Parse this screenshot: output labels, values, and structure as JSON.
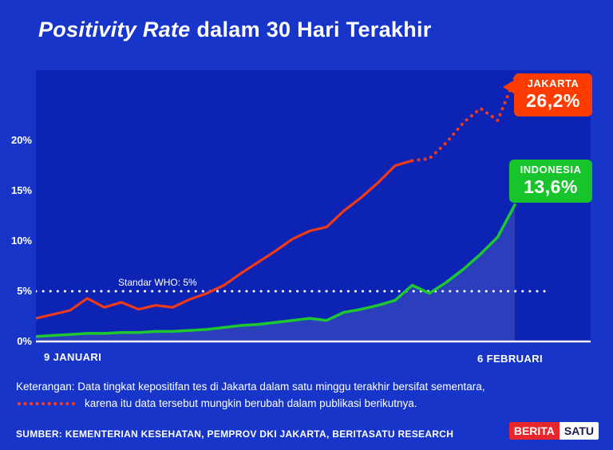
{
  "title": {
    "italic": "Positivity Rate",
    "rest": " dalam 30 Hari Terakhir"
  },
  "chart_data": {
    "type": "line",
    "x_start_label": "9 JANUARI",
    "x_end_label": "6 FEBRUARI",
    "ylim": [
      0,
      27
    ],
    "yticks": [
      "0%",
      "5%",
      "10%",
      "15%",
      "20%"
    ],
    "ytick_values": [
      0,
      5,
      10,
      15,
      20
    ],
    "grid": "off",
    "who_line": {
      "value": 5,
      "label": "Standar WHO: 5%"
    },
    "series": [
      {
        "name": "JAKARTA",
        "final_label": "26,2%",
        "color": "#f23a15",
        "dotted_from_index": 22,
        "values": [
          2.3,
          2.7,
          3.1,
          4.3,
          3.4,
          3.9,
          3.2,
          3.6,
          3.4,
          4.2,
          4.8,
          5.6,
          6.8,
          7.9,
          9.0,
          10.2,
          11.0,
          11.4,
          13.0,
          14.3,
          15.8,
          17.5,
          18.0,
          18.2,
          19.8,
          21.8,
          23.2,
          22.0,
          26.2
        ]
      },
      {
        "name": "INDONESIA",
        "final_label": "13,6%",
        "color": "#1dc72f",
        "values": [
          0.5,
          0.6,
          0.7,
          0.8,
          0.8,
          0.9,
          0.9,
          1.0,
          1.0,
          1.1,
          1.2,
          1.4,
          1.6,
          1.7,
          1.9,
          2.1,
          2.3,
          2.1,
          2.9,
          3.2,
          3.6,
          4.1,
          5.6,
          4.8,
          5.9,
          7.2,
          8.7,
          10.4,
          13.6
        ]
      }
    ]
  },
  "footnote": {
    "line1": "Keterangan: Data tingkat kepositifan tes di Jakarta dalam satu minggu terakhir bersifat sementara,",
    "line2": "karena itu data tersebut mungkin berubah dalam publikasi berikutnya."
  },
  "source": "SUMBER: KEMENTERIAN KESEHATAN, PEMPROV DKI JAKARTA, BERITASATU RESEARCH",
  "logo": {
    "part1": "BERITA",
    "part2": "SATU"
  },
  "colors": {
    "background": "#1736c9",
    "plot_background": "#0c23b4",
    "jakarta_box": "#ff3c00",
    "indonesia_box": "#17c42b",
    "axis": "#ffffff",
    "area_fill": "rgba(255,255,255,0.13)"
  }
}
